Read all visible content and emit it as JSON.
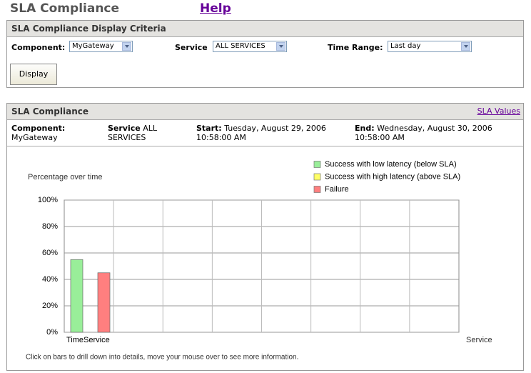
{
  "header": {
    "title": "SLA Compliance",
    "help": "Help"
  },
  "criteria": {
    "title": "SLA Compliance Display Criteria",
    "component_label": "Component:",
    "component_value": "MyGateway",
    "service_label": "Service",
    "service_value": "ALL SERVICES",
    "time_range_label": "Time Range:",
    "time_range_value": "Last day",
    "button": "Display"
  },
  "compliance": {
    "title": "SLA Compliance",
    "link": "SLA Values",
    "component_label": "Component:",
    "component_value": "MyGateway",
    "service_label": "Service",
    "service_value": "ALL SERVICES",
    "start_label": "Start:",
    "start_value": "Tuesday, August 29, 2006 10:58:00 AM",
    "end_label": "End:",
    "end_value": "Wednesday, August 30, 2006 10:58:00 AM"
  },
  "chart_data": {
    "type": "bar",
    "y_label": "Percentage over time",
    "x_label": "Service",
    "caption": "Click on bars to drill down into details, move your mouse over to see more information.",
    "categories": [
      "TimeService",
      null,
      null,
      null,
      null,
      null,
      null,
      null
    ],
    "series": [
      {
        "name": "Success with low latency (below SLA)",
        "color": "#99ee99",
        "values": [
          55,
          null,
          null,
          null,
          null,
          null,
          null,
          null
        ]
      },
      {
        "name": "Success with high latency (above SLA)",
        "color": "#ffff66",
        "values": [
          0,
          null,
          null,
          null,
          null,
          null,
          null,
          null
        ]
      },
      {
        "name": "Failure",
        "color": "#ff7f7f",
        "values": [
          45,
          null,
          null,
          null,
          null,
          null,
          null,
          null
        ]
      }
    ],
    "ylim": [
      0,
      100
    ],
    "yticks": [
      {
        "value": 0,
        "label": "0%"
      },
      {
        "value": 20,
        "label": "20%"
      },
      {
        "value": 40,
        "label": "40%"
      },
      {
        "value": 60,
        "label": "60%"
      },
      {
        "value": 80,
        "label": "80%"
      },
      {
        "value": 100,
        "label": "100%"
      }
    ],
    "grid": true
  }
}
